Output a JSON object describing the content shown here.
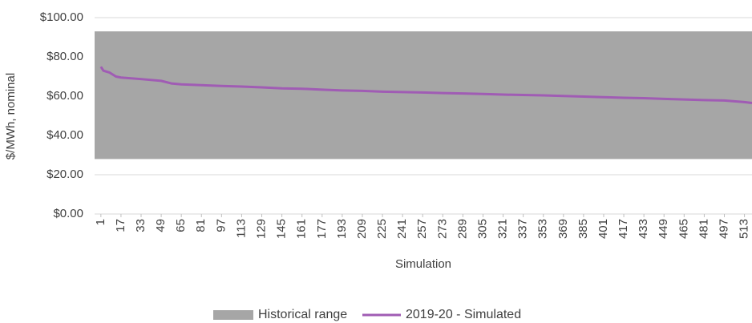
{
  "chart_data": {
    "type": "line",
    "y_label": "$/MWh, nominal",
    "x_label": "Simulation",
    "xlim": [
      -4,
      519
    ],
    "xticks": [
      1,
      17,
      33,
      49,
      65,
      81,
      97,
      113,
      129,
      145,
      161,
      177,
      193,
      209,
      225,
      241,
      257,
      273,
      289,
      305,
      321,
      337,
      353,
      369,
      385,
      401,
      417,
      433,
      449,
      465,
      481,
      497,
      513
    ],
    "ylim": [
      0,
      100
    ],
    "yticks": [
      {
        "value": 0,
        "label": "$0.00"
      },
      {
        "value": 20,
        "label": "$20.00"
      },
      {
        "value": 40,
        "label": "$40.00"
      },
      {
        "value": 60,
        "label": "$60.00"
      },
      {
        "value": 80,
        "label": "$80.00"
      },
      {
        "value": 100,
        "label": "$100.00"
      }
    ],
    "grid": true,
    "legend_position": "bottom",
    "band": {
      "name": "Historical range",
      "color": "#a6a6a6",
      "low": 28,
      "high": 93
    },
    "series": [
      {
        "name": "2019-20 - Simulated",
        "color": "#a05cb4",
        "x": [
          1,
          3,
          8,
          13,
          17,
          33,
          49,
          57,
          65,
          81,
          97,
          113,
          129,
          145,
          161,
          177,
          193,
          209,
          225,
          241,
          257,
          273,
          289,
          305,
          321,
          337,
          353,
          369,
          385,
          401,
          417,
          433,
          449,
          465,
          481,
          497,
          513,
          519
        ],
        "values": [
          75,
          73,
          72,
          70,
          69.5,
          68.7,
          67.8,
          66.5,
          66,
          65.6,
          65.2,
          64.9,
          64.5,
          64,
          63.8,
          63.3,
          62.9,
          62.7,
          62.3,
          62.1,
          61.9,
          61.6,
          61.4,
          61.1,
          60.8,
          60.6,
          60.4,
          60.1,
          59.8,
          59.5,
          59.2,
          59,
          58.6,
          58.3,
          58,
          57.8,
          57,
          56.5
        ]
      }
    ]
  }
}
